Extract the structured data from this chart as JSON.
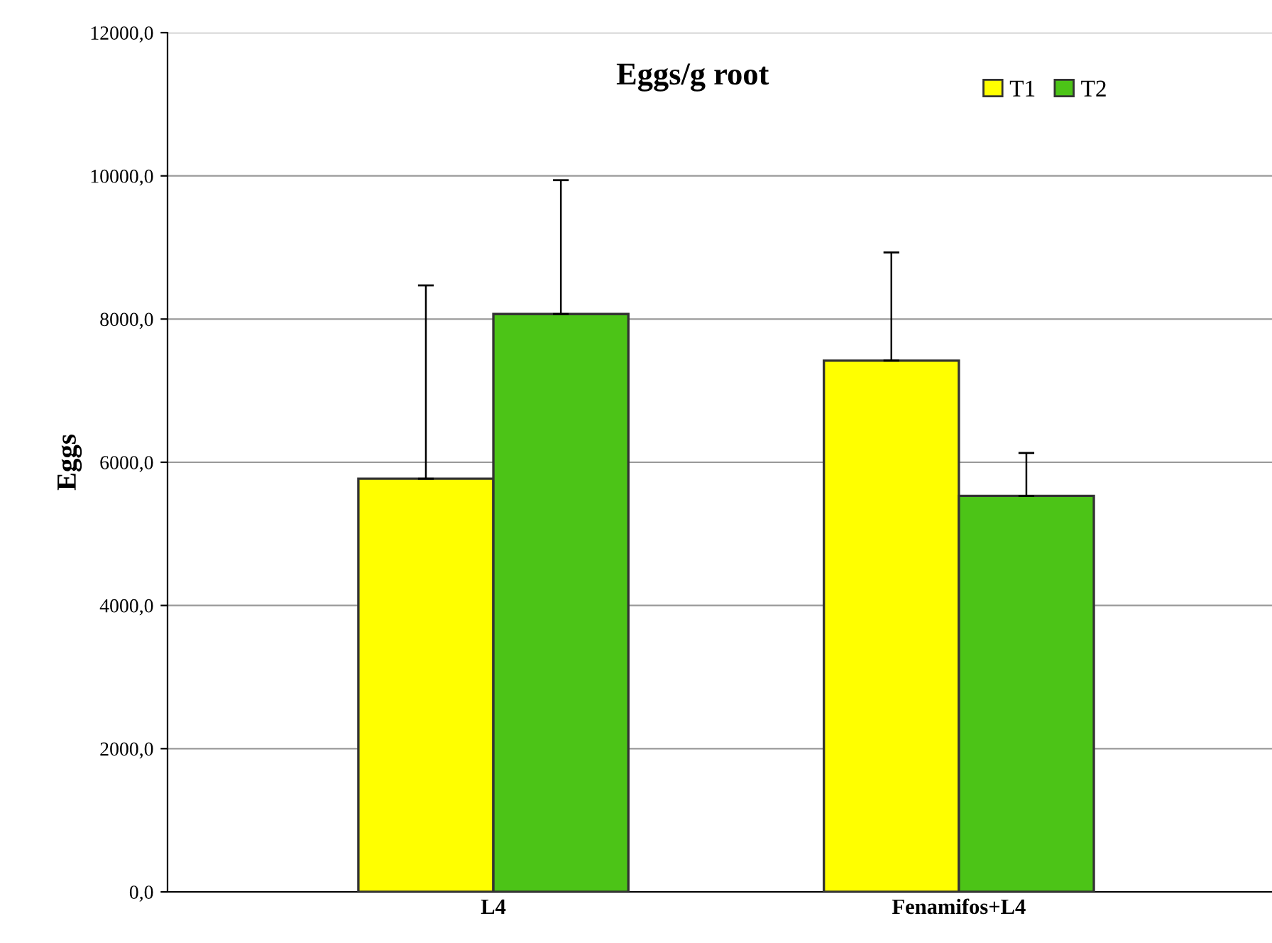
{
  "chart_data": {
    "type": "bar",
    "title": "Eggs/g root",
    "ylabel": "Eggs",
    "categories": [
      "L4",
      "Fenamifos+L4"
    ],
    "series": [
      {
        "name": "T1",
        "color": "#ffff00",
        "values": [
          5770,
          7420
        ],
        "errors": [
          [
            5770,
            8470
          ],
          [
            7420,
            8930
          ]
        ]
      },
      {
        "name": "T2",
        "color": "#4cc417",
        "values": [
          8070,
          5530
        ],
        "errors": [
          [
            8070,
            9940
          ],
          [
            5530,
            6130
          ]
        ]
      }
    ],
    "ylim": [
      0,
      12000
    ],
    "yticks": [
      {
        "value": 0,
        "label": "0,0"
      },
      {
        "value": 2000,
        "label": "2000,0"
      },
      {
        "value": 4000,
        "label": "4000,0"
      },
      {
        "value": 6000,
        "label": "6000,0"
      },
      {
        "value": 8000,
        "label": "8000,0"
      },
      {
        "value": 10000,
        "label": "10000,0"
      },
      {
        "value": 12000,
        "label": "12000,0"
      }
    ],
    "grid": "y",
    "legend": "top right"
  }
}
